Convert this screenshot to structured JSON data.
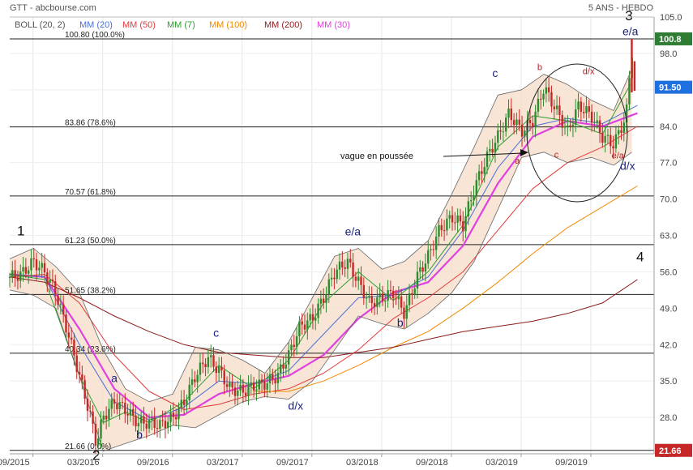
{
  "header": {
    "left": "GTT - abcbourse.com",
    "right": "5 ANS - HEBDO"
  },
  "indicators": [
    {
      "label": "BOLL (20, 2)",
      "color": "#555555"
    },
    {
      "label": "MM (20)",
      "color": "#4a6fd8"
    },
    {
      "label": "MM (50)",
      "color": "#e23b3b"
    },
    {
      "label": "MM (7)",
      "color": "#2e9e2e"
    },
    {
      "label": "MM (100)",
      "color": "#f08a00"
    },
    {
      "label": "MM (200)",
      "color": "#8b1a1a"
    },
    {
      "label": "MM (30)",
      "color": "#e040e0"
    }
  ],
  "fib_levels": [
    {
      "price": 100.8,
      "label": "100.80  (100.0%)"
    },
    {
      "price": 83.86,
      "label": "83.86  (78.6%)"
    },
    {
      "price": 70.57,
      "label": "70.57  (61.8%)"
    },
    {
      "price": 61.23,
      "label": "61.23  (50.0%)"
    },
    {
      "price": 51.65,
      "label": "51.65  (38.2%)"
    },
    {
      "price": 40.34,
      "label": "40.34  (23.6%)"
    },
    {
      "price": 21.66,
      "label": "21.66  (0.0%)"
    }
  ],
  "price_tags": [
    {
      "text": "100.8",
      "price": 100.8,
      "color": "#2e7d32"
    },
    {
      "text": "91.50",
      "price": 91.5,
      "color": "#1e6fe0"
    },
    {
      "text": "21.66",
      "price": 21.66,
      "color": "#c62828"
    }
  ],
  "annotations": {
    "waves": [
      {
        "text": "1",
        "date": 2015.58,
        "price": 63.0,
        "style": "k"
      },
      {
        "text": "2",
        "date": 2016.12,
        "price": 19.8,
        "style": "k"
      },
      {
        "text": "3",
        "date": 2019.94,
        "price": 104.4,
        "style": "k"
      },
      {
        "text": "4",
        "date": 2020.02,
        "price": 58.0,
        "style": "k"
      },
      {
        "text": "a",
        "date": 2016.25,
        "price": 34.8,
        "style": "b"
      },
      {
        "text": "b",
        "date": 2016.43,
        "price": 24.0,
        "style": "b"
      },
      {
        "text": "c",
        "date": 2016.98,
        "price": 43.5,
        "style": "b"
      },
      {
        "text": "d/x",
        "date": 2017.55,
        "price": 29.5,
        "style": "b"
      },
      {
        "text": "e/a",
        "date": 2017.96,
        "price": 63.0,
        "style": "b"
      },
      {
        "text": "b",
        "date": 2018.3,
        "price": 45.5,
        "style": "b"
      },
      {
        "text": "c",
        "date": 2018.98,
        "price": 93.5,
        "style": "b"
      },
      {
        "text": "e/a",
        "date": 2019.95,
        "price": 101.5,
        "style": "b"
      },
      {
        "text": "d/x",
        "date": 2019.93,
        "price": 75.6,
        "style": "b"
      },
      {
        "text": "b",
        "date": 2019.3,
        "price": 94.8,
        "style": "r"
      },
      {
        "text": "d/x",
        "date": 2019.65,
        "price": 94.0,
        "style": "r"
      },
      {
        "text": "a",
        "date": 2019.14,
        "price": 76.8,
        "style": "r"
      },
      {
        "text": "c",
        "date": 2019.42,
        "price": 78.0,
        "style": "r"
      },
      {
        "text": "e/a",
        "date": 2019.86,
        "price": 77.8,
        "style": "r"
      }
    ],
    "note": {
      "text": "vague en poussée",
      "date": 2017.5,
      "price": 79.5
    }
  },
  "chart_data": {
    "type": "line",
    "title": "GTT",
    "subtitle": "5 ANS - HEBDO",
    "xlabel": "",
    "ylabel": "",
    "x_ticks": [
      "09/2015",
      "03/2016",
      "09/2016",
      "03/2017",
      "09/2017",
      "03/2018",
      "09/2018",
      "03/2019",
      "09/2019"
    ],
    "y_ticks": [
      105.0,
      98.0,
      91.0,
      84.0,
      77.0,
      70.0,
      63.0,
      56.0,
      49.0,
      42.0,
      35.0,
      28.0,
      21.0
    ],
    "xlim": [
      2015.5,
      2020.12
    ],
    "ylim": [
      21.0,
      105.0
    ],
    "grid": true,
    "legend": "top-left",
    "series": [
      {
        "name": "GTT",
        "color": "#2e8b2e",
        "x": [
          2015.5,
          2015.58,
          2015.67,
          2015.75,
          2015.83,
          2015.92,
          2016.0,
          2016.08,
          2016.12,
          2016.17,
          2016.25,
          2016.33,
          2016.42,
          2016.5,
          2016.58,
          2016.67,
          2016.75,
          2016.83,
          2016.92,
          2017.0,
          2017.08,
          2017.17,
          2017.25,
          2017.33,
          2017.42,
          2017.5,
          2017.58,
          2017.67,
          2017.75,
          2017.83,
          2017.92,
          2018.0,
          2018.08,
          2018.17,
          2018.25,
          2018.33,
          2018.42,
          2018.5,
          2018.58,
          2018.67,
          2018.75,
          2018.83,
          2018.92,
          2019.0,
          2019.08,
          2019.17,
          2019.25,
          2019.33,
          2019.42,
          2019.5,
          2019.58,
          2019.67,
          2019.75,
          2019.83,
          2019.92,
          2019.96,
          2019.98
        ],
        "values": [
          55.0,
          55.5,
          58.0,
          56.0,
          52.0,
          44.0,
          36.0,
          28.0,
          23.0,
          28.0,
          31.0,
          29.5,
          27.0,
          27.0,
          26.5,
          28.0,
          31.0,
          36.0,
          39.5,
          37.0,
          33.5,
          33.0,
          34.0,
          34.5,
          36.0,
          40.0,
          45.5,
          47.0,
          51.0,
          56.0,
          58.0,
          54.0,
          50.0,
          51.0,
          52.0,
          48.0,
          55.0,
          59.0,
          64.0,
          66.5,
          65.0,
          72.0,
          78.0,
          82.0,
          86.5,
          83.0,
          85.0,
          91.5,
          87.0,
          83.0,
          88.0,
          86.0,
          82.0,
          80.5,
          86.0,
          99.0,
          91.5
        ]
      },
      {
        "name": "MM (30)",
        "color": "#e040e0",
        "x": [
          2015.5,
          2015.75,
          2016.0,
          2016.25,
          2016.5,
          2016.75,
          2017.0,
          2017.25,
          2017.5,
          2017.75,
          2018.0,
          2018.25,
          2018.5,
          2018.75,
          2019.0,
          2019.25,
          2019.5,
          2019.75,
          2020.0
        ],
        "values": [
          55.5,
          55.0,
          45.0,
          33.5,
          28.0,
          28.5,
          32.5,
          34.5,
          36.0,
          40.0,
          47.0,
          52.0,
          54.0,
          61.0,
          73.0,
          82.0,
          85.0,
          84.0,
          86.5
        ]
      },
      {
        "name": "MM (20)",
        "color": "#4a6fd8",
        "x": [
          2015.5,
          2015.75,
          2016.0,
          2016.25,
          2016.5,
          2016.75,
          2017.0,
          2017.25,
          2017.5,
          2017.75,
          2018.0,
          2018.25,
          2018.5,
          2018.75,
          2019.0,
          2019.25,
          2019.5,
          2019.75,
          2020.0
        ],
        "values": [
          55.5,
          55.0,
          42.0,
          31.0,
          27.5,
          30.0,
          35.0,
          34.5,
          37.0,
          44.0,
          51.0,
          51.5,
          55.0,
          64.0,
          76.0,
          84.0,
          85.5,
          84.5,
          88.0
        ]
      },
      {
        "name": "MM (7)",
        "color": "#2e9e2e",
        "x": [
          2015.5,
          2015.75,
          2016.0,
          2016.17,
          2016.33,
          2016.5,
          2016.75,
          2017.0,
          2017.25,
          2017.5,
          2017.75,
          2018.0,
          2018.25,
          2018.5,
          2018.75,
          2019.0,
          2019.25,
          2019.5,
          2019.75,
          2019.95
        ],
        "values": [
          55.5,
          54.5,
          36.0,
          27.0,
          29.0,
          27.0,
          31.0,
          38.0,
          33.5,
          39.0,
          50.0,
          56.0,
          50.5,
          56.0,
          65.0,
          80.0,
          86.0,
          85.0,
          82.5,
          92.0
        ]
      },
      {
        "name": "MM (50)",
        "color": "#e23b3b",
        "x": [
          2015.5,
          2015.75,
          2016.0,
          2016.25,
          2016.5,
          2016.75,
          2017.0,
          2017.25,
          2017.5,
          2017.75,
          2018.0,
          2018.25,
          2018.5,
          2018.75,
          2019.0,
          2019.25,
          2019.5,
          2019.75,
          2020.0
        ],
        "values": [
          55.0,
          55.5,
          50.0,
          40.0,
          33.0,
          29.5,
          30.5,
          32.5,
          33.5,
          36.5,
          41.0,
          47.0,
          51.0,
          56.0,
          64.0,
          72.0,
          77.0,
          80.0,
          84.0
        ]
      },
      {
        "name": "MM (100)",
        "color": "#f08a00",
        "x": [
          2017.25,
          2017.5,
          2017.75,
          2018.0,
          2018.25,
          2018.5,
          2018.75,
          2019.0,
          2019.25,
          2019.5,
          2019.75,
          2020.0
        ],
        "values": [
          33.0,
          33.0,
          35.0,
          38.0,
          41.5,
          44.5,
          49.0,
          54.0,
          59.5,
          64.5,
          68.5,
          72.5
        ]
      },
      {
        "name": "MM (200)",
        "color": "#8b1a1a",
        "x": [
          2015.5,
          2015.75,
          2016.0,
          2016.25,
          2016.5,
          2016.75,
          2017.0,
          2017.25,
          2017.5,
          2017.75,
          2018.0,
          2018.25,
          2018.5,
          2018.75,
          2019.0,
          2019.25,
          2019.5,
          2019.75,
          2020.0
        ],
        "values": [
          55.0,
          54.0,
          51.0,
          47.5,
          44.5,
          42.0,
          40.5,
          40.0,
          39.5,
          39.5,
          40.5,
          41.5,
          43.0,
          44.5,
          45.5,
          46.5,
          48.0,
          50.0,
          54.5
        ]
      },
      {
        "name": "BOLL (20, 2) upper",
        "color": "#666666",
        "x": [
          2015.5,
          2015.67,
          2015.83,
          2016.0,
          2016.17,
          2016.33,
          2016.5,
          2016.67,
          2016.83,
          2017.0,
          2017.17,
          2017.33,
          2017.5,
          2017.67,
          2017.83,
          2018.0,
          2018.17,
          2018.33,
          2018.5,
          2018.67,
          2018.83,
          2019.0,
          2019.17,
          2019.33,
          2019.5,
          2019.67,
          2019.83,
          2019.96
        ],
        "values": [
          58.5,
          60.5,
          57.0,
          52.0,
          41.0,
          33.5,
          31.0,
          32.5,
          41.5,
          41.0,
          39.0,
          36.5,
          42.5,
          51.0,
          59.0,
          60.5,
          56.5,
          58.0,
          62.0,
          71.0,
          80.0,
          90.0,
          91.0,
          94.0,
          92.0,
          89.0,
          87.0,
          95.0
        ]
      },
      {
        "name": "BOLL (20, 2) lower",
        "color": "#666666",
        "x": [
          2015.5,
          2015.67,
          2015.83,
          2016.0,
          2016.17,
          2016.33,
          2016.5,
          2016.67,
          2016.83,
          2017.0,
          2017.17,
          2017.33,
          2017.5,
          2017.67,
          2017.83,
          2018.0,
          2018.17,
          2018.33,
          2018.5,
          2018.67,
          2018.83,
          2019.0,
          2019.17,
          2019.33,
          2019.5,
          2019.67,
          2019.83,
          2019.96
        ],
        "values": [
          52.5,
          51.5,
          49.0,
          36.0,
          21.5,
          23.0,
          24.5,
          26.5,
          26.0,
          28.5,
          31.0,
          32.0,
          31.5,
          35.0,
          41.0,
          47.5,
          46.0,
          45.0,
          48.0,
          52.0,
          58.0,
          68.0,
          78.0,
          79.0,
          77.0,
          78.0,
          76.5,
          79.0
        ]
      }
    ]
  }
}
